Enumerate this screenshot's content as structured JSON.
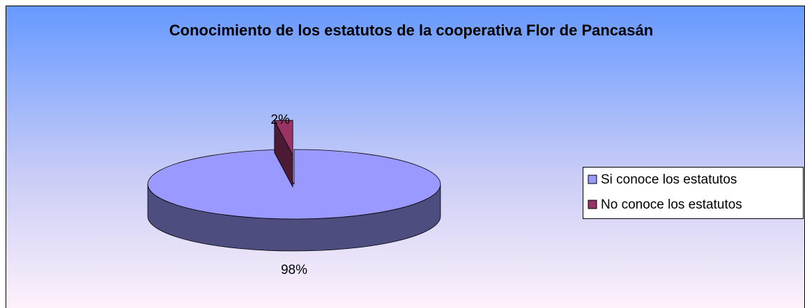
{
  "chart_data": {
    "type": "pie",
    "title": "Conocimiento de los estatutos de la cooperativa Flor de Pancasán",
    "categories": [
      "Si conoce los estatutos",
      "No conoce los estatutos"
    ],
    "values": [
      98,
      2
    ],
    "value_labels": [
      "98%",
      "2%"
    ],
    "colors": [
      "#9999ff",
      "#993366"
    ],
    "legend": "right"
  }
}
